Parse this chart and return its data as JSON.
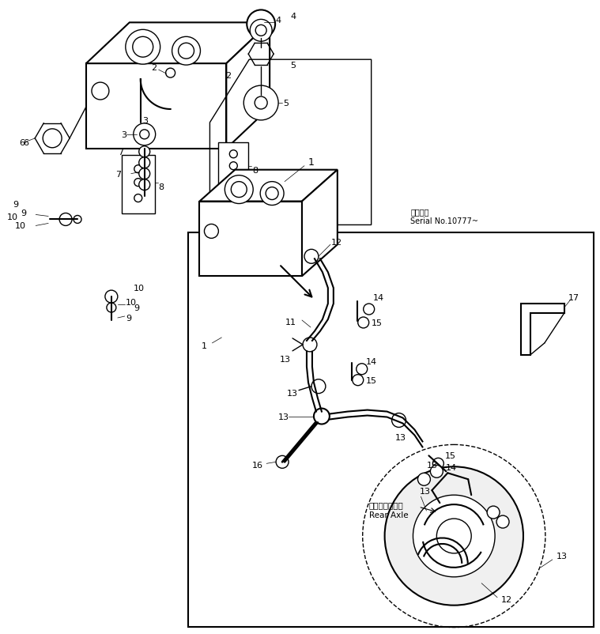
{
  "bg_color": "#ffffff",
  "line_color": "#000000",
  "fig_width": 7.59,
  "fig_height": 8.03,
  "dpi": 100,
  "serial_jp": "適用号機",
  "serial_en": "Serial No.10777~",
  "rear_axle_jp": "リヤーアクスル",
  "rear_axle_en": "Rear Axle"
}
